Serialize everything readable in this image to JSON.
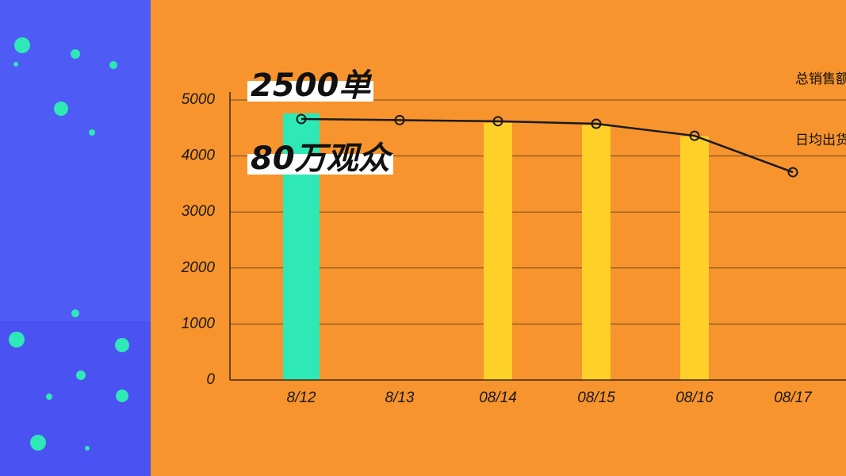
{
  "chart_data": {
    "type": "bar",
    "annotations": [
      "2500单",
      "80万观众"
    ],
    "legend": [
      "总销售额",
      "日均出货"
    ],
    "categories": [
      "8/12",
      "8/13",
      "08/14",
      "08/15",
      "08/16",
      "08/17"
    ],
    "values": [
      4760,
      null,
      4590,
      4550,
      4350,
      null
    ],
    "colors": [
      "#2ee8b6",
      "#ffd028",
      "#ffd028",
      "#ffd028",
      "#ffd028",
      "#ffd028"
    ],
    "line": {
      "values": [
        4660,
        4640,
        4620,
        4575,
        4360,
        3710
      ],
      "color": "#1a1a1a"
    },
    "ylim": [
      0,
      5000
    ],
    "yticks": [
      0,
      1000,
      2000,
      3000,
      4000,
      5000
    ],
    "grid": true
  }
}
